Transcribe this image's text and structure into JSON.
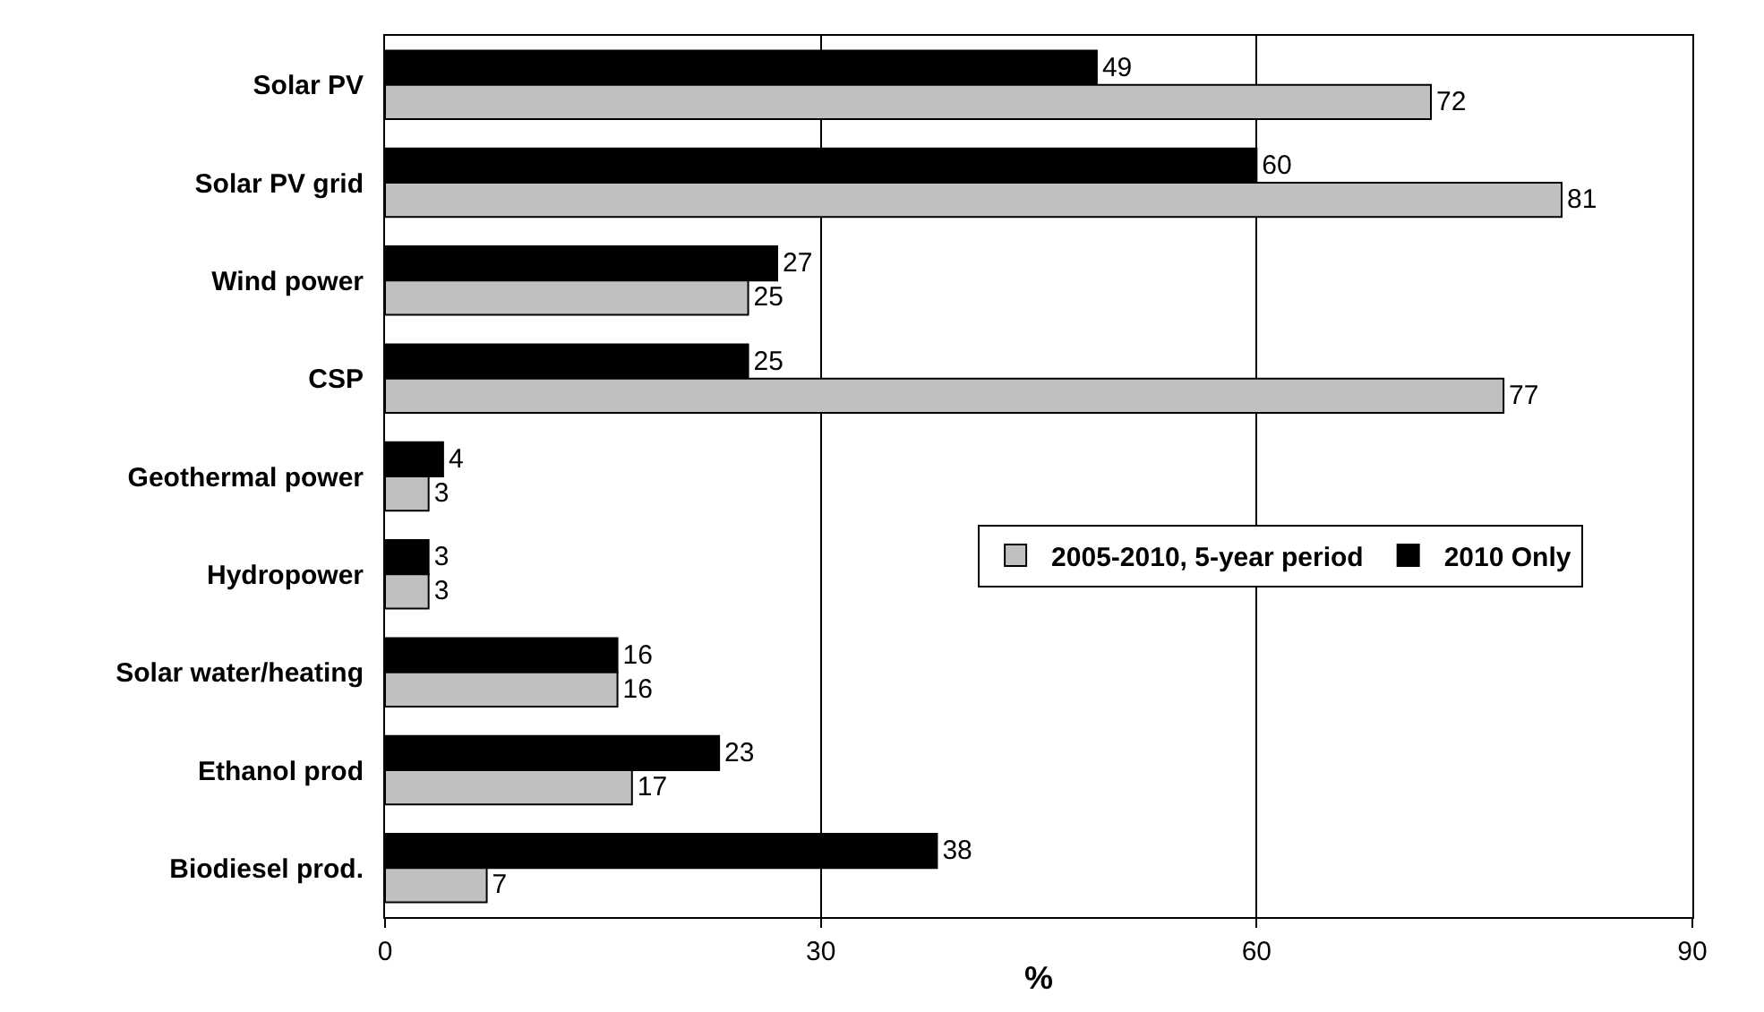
{
  "chart_data": {
    "type": "bar",
    "orientation": "horizontal",
    "xlabel": "%",
    "categories": [
      "Solar PV",
      "Solar PV grid",
      "Wind power",
      "CSP",
      "Geothermal power",
      "Hydropower",
      "Solar water/heating",
      "Ethanol prod",
      "Biodiesel prod."
    ],
    "series": [
      {
        "name": "2005-2010, 5-year period",
        "color": "#c0c0c0",
        "values": [
          72,
          81,
          25,
          77,
          3,
          3,
          16,
          17,
          7
        ]
      },
      {
        "name": "2010 Only",
        "color": "#000000",
        "values": [
          49,
          60,
          27,
          25,
          4,
          3,
          16,
          23,
          38
        ]
      }
    ],
    "xlim": [
      0,
      90
    ],
    "xticks": [
      0,
      30,
      60,
      90
    ],
    "grid": "x",
    "legend": "right",
    "data_labels": true
  }
}
